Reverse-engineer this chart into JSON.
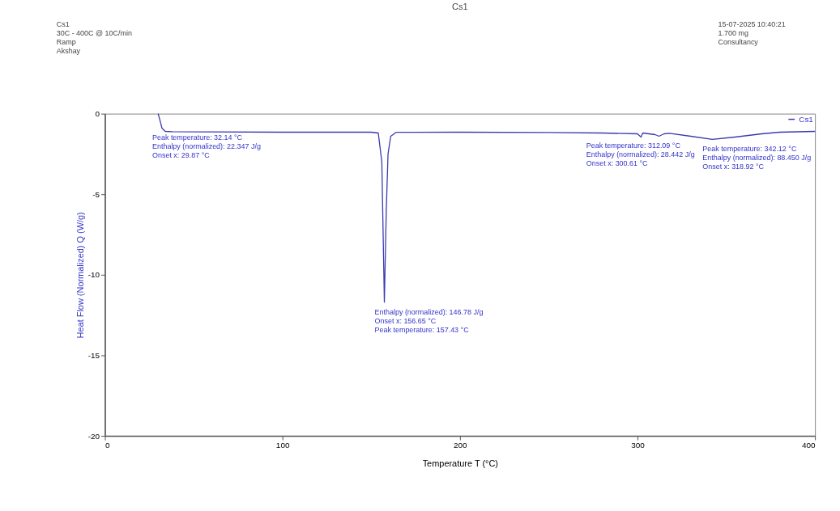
{
  "chart_data": {
    "type": "line",
    "title": "Cs1",
    "xlabel": "Temperature T (°C)",
    "ylabel": "Heat Flow (Normalized) Q (W/g)",
    "xlim": [
      0,
      400
    ],
    "xticks": [
      0,
      100,
      200,
      300,
      400
    ],
    "ylim": [
      -20,
      0
    ],
    "yticks": [
      -20,
      -15,
      -10,
      -5,
      0
    ],
    "grid": false,
    "legend": "top right",
    "marker": "none",
    "line_style": "solid",
    "series": [
      {
        "name": "Cs1",
        "color": "#3b3bb0",
        "x": [
          30,
          31,
          32.14,
          34,
          38,
          60,
          100,
          140,
          150,
          154,
          156,
          157.43,
          158.5,
          159.5,
          161,
          164,
          200,
          250,
          280,
          300,
          302,
          303,
          310,
          312.09,
          315,
          318,
          330,
          342.12,
          355,
          370,
          380,
          400
        ],
        "values": [
          0,
          -0.4,
          -0.9,
          -1.1,
          -1.12,
          -1.13,
          -1.15,
          -1.15,
          -1.15,
          -1.2,
          -3,
          -11.7,
          -6,
          -2.5,
          -1.4,
          -1.16,
          -1.15,
          -1.17,
          -1.2,
          -1.25,
          -1.45,
          -1.2,
          -1.3,
          -1.4,
          -1.25,
          -1.22,
          -1.4,
          -1.6,
          -1.45,
          -1.25,
          -1.15,
          -1.1
        ]
      }
    ],
    "annotations": [
      "Cs1\n30C - 400C @ 10C/min\nRamp\nAkshay",
      "15-07-2025 10:40:21\n1.700 mg\nConsultancy",
      {
        "text": "Peak temperature: 32.14 °C\nEnthalpy (normalized): 22.347 J/g\nOnset x: 29.87 °C",
        "x": 32.14,
        "y": -0.9
      },
      {
        "text": "Enthalpy (normalized): 146.78 J/g\nOnset x: 156.65 °C\nPeak temperature: 157.43 °C",
        "x": 157.43,
        "y": -11.7
      },
      {
        "text": "Peak temperature: 312.09 °C\nEnthalpy (normalized): 28.442 J/g\nOnset x: 300.61 °C",
        "x": 312.09,
        "y": -1.4
      },
      {
        "text": "Peak temperature: 342.12 °C\nEnthalpy (normalized): 88.450 J/g\nOnset x: 318.92 °C",
        "x": 342.12,
        "y": -1.6
      }
    ]
  }
}
